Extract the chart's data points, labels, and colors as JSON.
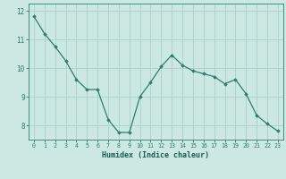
{
  "x": [
    0,
    1,
    2,
    3,
    4,
    5,
    6,
    7,
    8,
    9,
    10,
    11,
    12,
    13,
    14,
    15,
    16,
    17,
    18,
    19,
    20,
    21,
    22,
    23
  ],
  "y": [
    11.8,
    11.2,
    10.75,
    10.25,
    9.6,
    9.25,
    9.25,
    8.2,
    7.75,
    7.75,
    9.0,
    9.5,
    10.05,
    10.45,
    10.1,
    9.9,
    9.8,
    9.7,
    9.45,
    9.6,
    9.1,
    8.35,
    8.05,
    7.8
  ],
  "line_color": "#2e7d6e",
  "marker": "D",
  "marker_size": 1.8,
  "bg_color": "#cbe8e3",
  "grid_color": "#afd4ce",
  "tick_color": "#2e7d6e",
  "label_color": "#1a5c52",
  "xlabel": "Humidex (Indice chaleur)",
  "ylim": [
    7.5,
    12.25
  ],
  "xlim": [
    -0.5,
    23.5
  ],
  "yticks": [
    8,
    9,
    10,
    11,
    12
  ],
  "xticks": [
    0,
    1,
    2,
    3,
    4,
    5,
    6,
    7,
    8,
    9,
    10,
    11,
    12,
    13,
    14,
    15,
    16,
    17,
    18,
    19,
    20,
    21,
    22,
    23
  ]
}
